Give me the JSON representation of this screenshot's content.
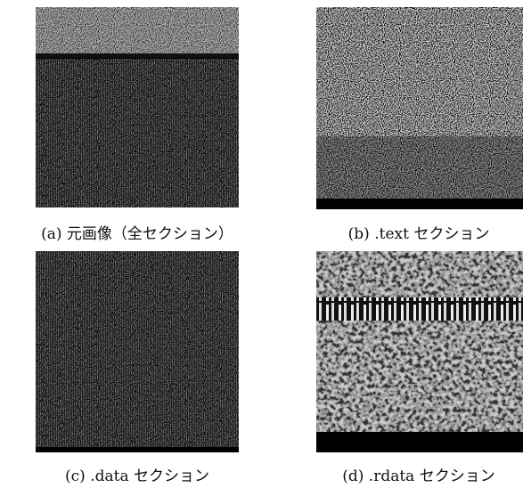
{
  "captions": [
    "(a) 元画像（全セクション）",
    "(b) .text セクション",
    "(c) .data セクション",
    "(d) .rdata セクション"
  ]
}
